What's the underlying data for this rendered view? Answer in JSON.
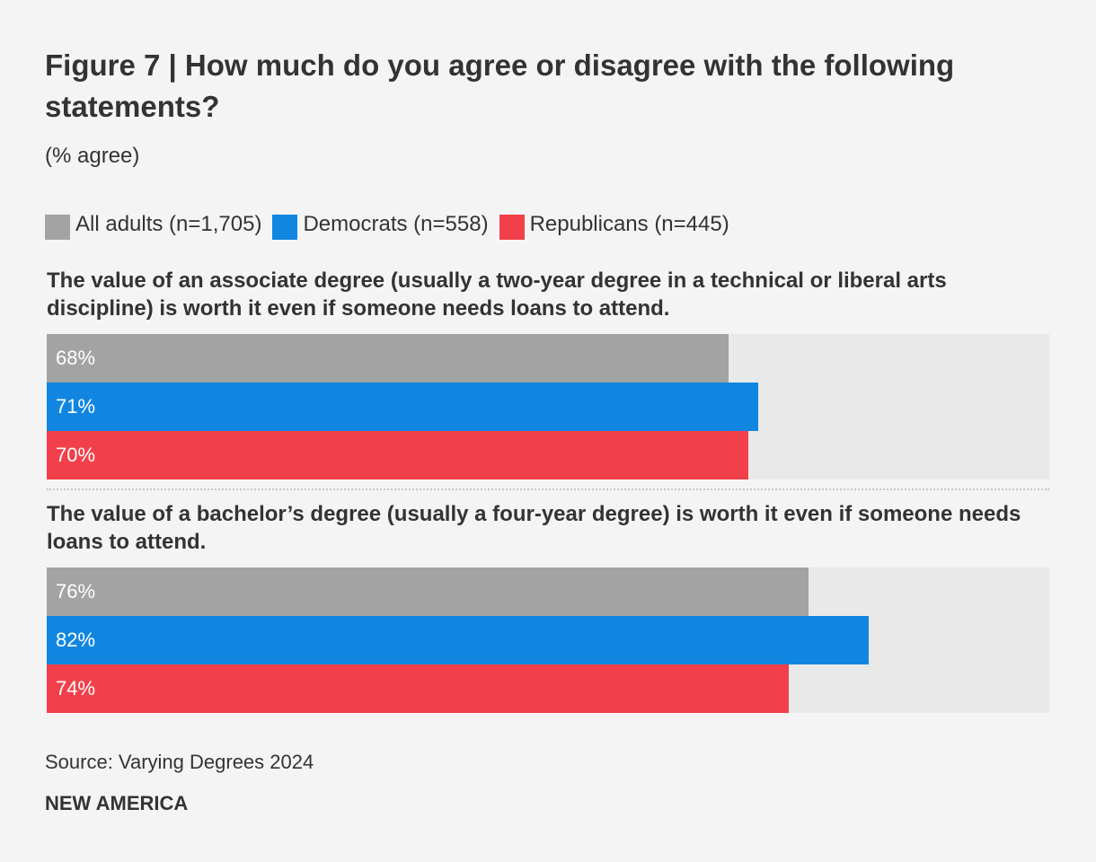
{
  "title": "Figure 7 | How much do you agree or disagree with the following statements?",
  "subtitle": "(% agree)",
  "source": "Source: Varying Degrees 2024",
  "brand": "NEW AMERICA",
  "colors": {
    "all_adults": "#a3a3a3",
    "democrats": "#1186e1",
    "republicans": "#f2404a",
    "track": "#e9e9e9"
  },
  "chart_data": {
    "type": "bar",
    "orientation": "horizontal",
    "title": "Figure 7 | How much do you agree or disagree with the following statements?",
    "subtitle": "(% agree)",
    "xlim": [
      0,
      100
    ],
    "unit": "%",
    "legend": [
      {
        "key": "all_adults",
        "label": "All adults (n=1,705)"
      },
      {
        "key": "democrats",
        "label": "Democrats (n=558)"
      },
      {
        "key": "republicans",
        "label": "Republicans (n=445)"
      }
    ],
    "categories": [
      "The value of an associate degree (usually a two-year degree in a technical or liberal arts discipline) is worth it even if someone needs loans to attend.",
      "The value of a bachelor’s degree (usually a four-year degree) is worth it even if someone needs loans to attend."
    ],
    "series": [
      {
        "name": "All adults (n=1,705)",
        "key": "all_adults",
        "values": [
          68,
          76
        ],
        "labels": [
          "68%",
          "76%"
        ]
      },
      {
        "name": "Democrats (n=558)",
        "key": "democrats",
        "values": [
          71,
          82
        ],
        "labels": [
          "71%",
          "82%"
        ]
      },
      {
        "name": "Republicans (n=445)",
        "key": "republicans",
        "values": [
          70,
          74
        ],
        "labels": [
          "70%",
          "74%"
        ]
      }
    ]
  }
}
